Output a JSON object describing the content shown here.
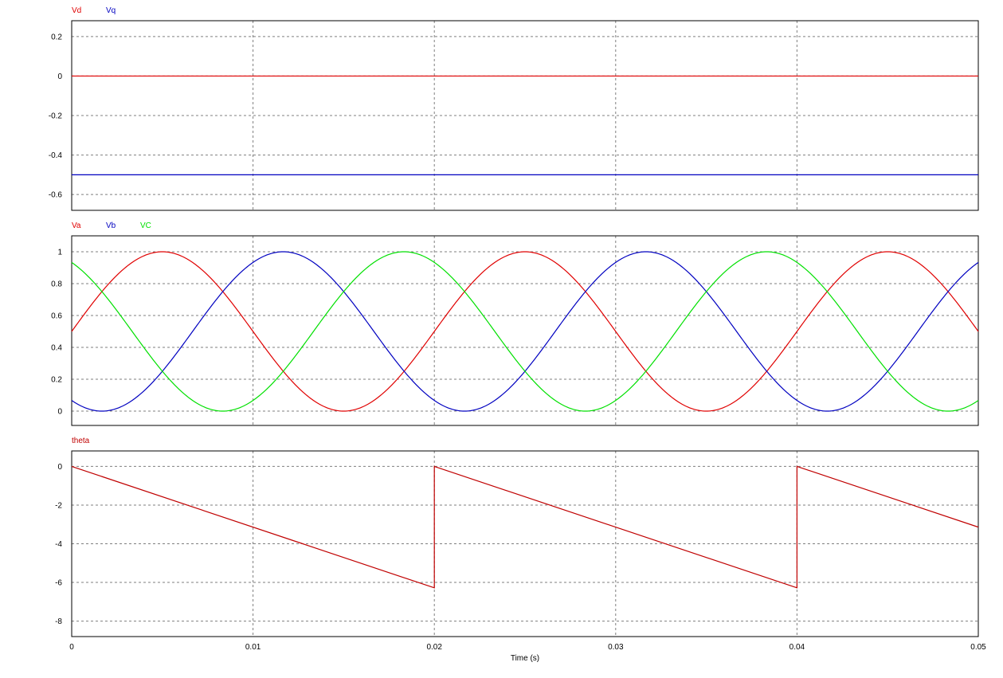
{
  "x_axis": {
    "label": "Time (s)",
    "range": [
      0,
      0.05
    ],
    "ticks": [
      0,
      0.01,
      0.02,
      0.03,
      0.04,
      0.05
    ],
    "tick_labels": [
      "0",
      "0.01",
      "0.02",
      "0.03",
      "0.04",
      "0.05"
    ]
  },
  "chart_data": [
    {
      "type": "line",
      "ylim": [
        -0.68,
        0.28
      ],
      "yticks": [
        0.2,
        0,
        -0.2,
        -0.4,
        -0.6
      ],
      "ytick_labels": [
        "0.2",
        "0",
        "-0.2",
        "-0.4",
        "-0.6"
      ],
      "grid": true,
      "series": [
        {
          "name": "Vd",
          "color": "#e00000",
          "x": [
            0,
            0.05
          ],
          "values": [
            0,
            0
          ]
        },
        {
          "name": "Vq",
          "color": "#0000c0",
          "x": [
            0,
            0.05
          ],
          "values": [
            -0.5,
            -0.5
          ]
        }
      ]
    },
    {
      "type": "line",
      "ylim": [
        -0.09,
        1.1
      ],
      "yticks": [
        1,
        0.8,
        0.6,
        0.4,
        0.2,
        0
      ],
      "ytick_labels": [
        "1",
        "0.8",
        "0.6",
        "0.4",
        "0.2",
        "0"
      ],
      "grid": true,
      "series": [
        {
          "name": "Va",
          "color": "#e00000",
          "x": [
            0,
            0.005,
            0.015,
            0.025,
            0.035,
            0.045,
            0.05
          ],
          "values": [
            0.5,
            1,
            0,
            1,
            0,
            1,
            0.5
          ]
        },
        {
          "name": "Vb",
          "color": "#0000c0",
          "x": [
            0,
            0.0083,
            0.0183,
            0.0283,
            0.0383,
            0.0483,
            0.05
          ],
          "values": [
            0.93,
            0,
            1,
            0,
            1,
            0,
            0.07
          ]
        },
        {
          "name": "VC",
          "color": "#00e000",
          "x": [
            0,
            0.0017,
            0.0117,
            0.0217,
            0.0317,
            0.0417,
            0.05
          ],
          "values": [
            0.07,
            0,
            1,
            0,
            1,
            0,
            0.93
          ]
        }
      ]
    },
    {
      "type": "line",
      "ylim": [
        -8.8,
        0.8
      ],
      "yticks": [
        0,
        -2,
        -4,
        -6,
        -8
      ],
      "ytick_labels": [
        "0",
        "-2",
        "-4",
        "-6",
        "-8"
      ],
      "grid": true,
      "series": [
        {
          "name": "theta",
          "color": "#c00000",
          "x": [
            0,
            0.02,
            0.02,
            0.04,
            0.04,
            0.05
          ],
          "values": [
            0,
            -6.28,
            0,
            -6.28,
            0,
            -3.14
          ]
        }
      ]
    }
  ]
}
